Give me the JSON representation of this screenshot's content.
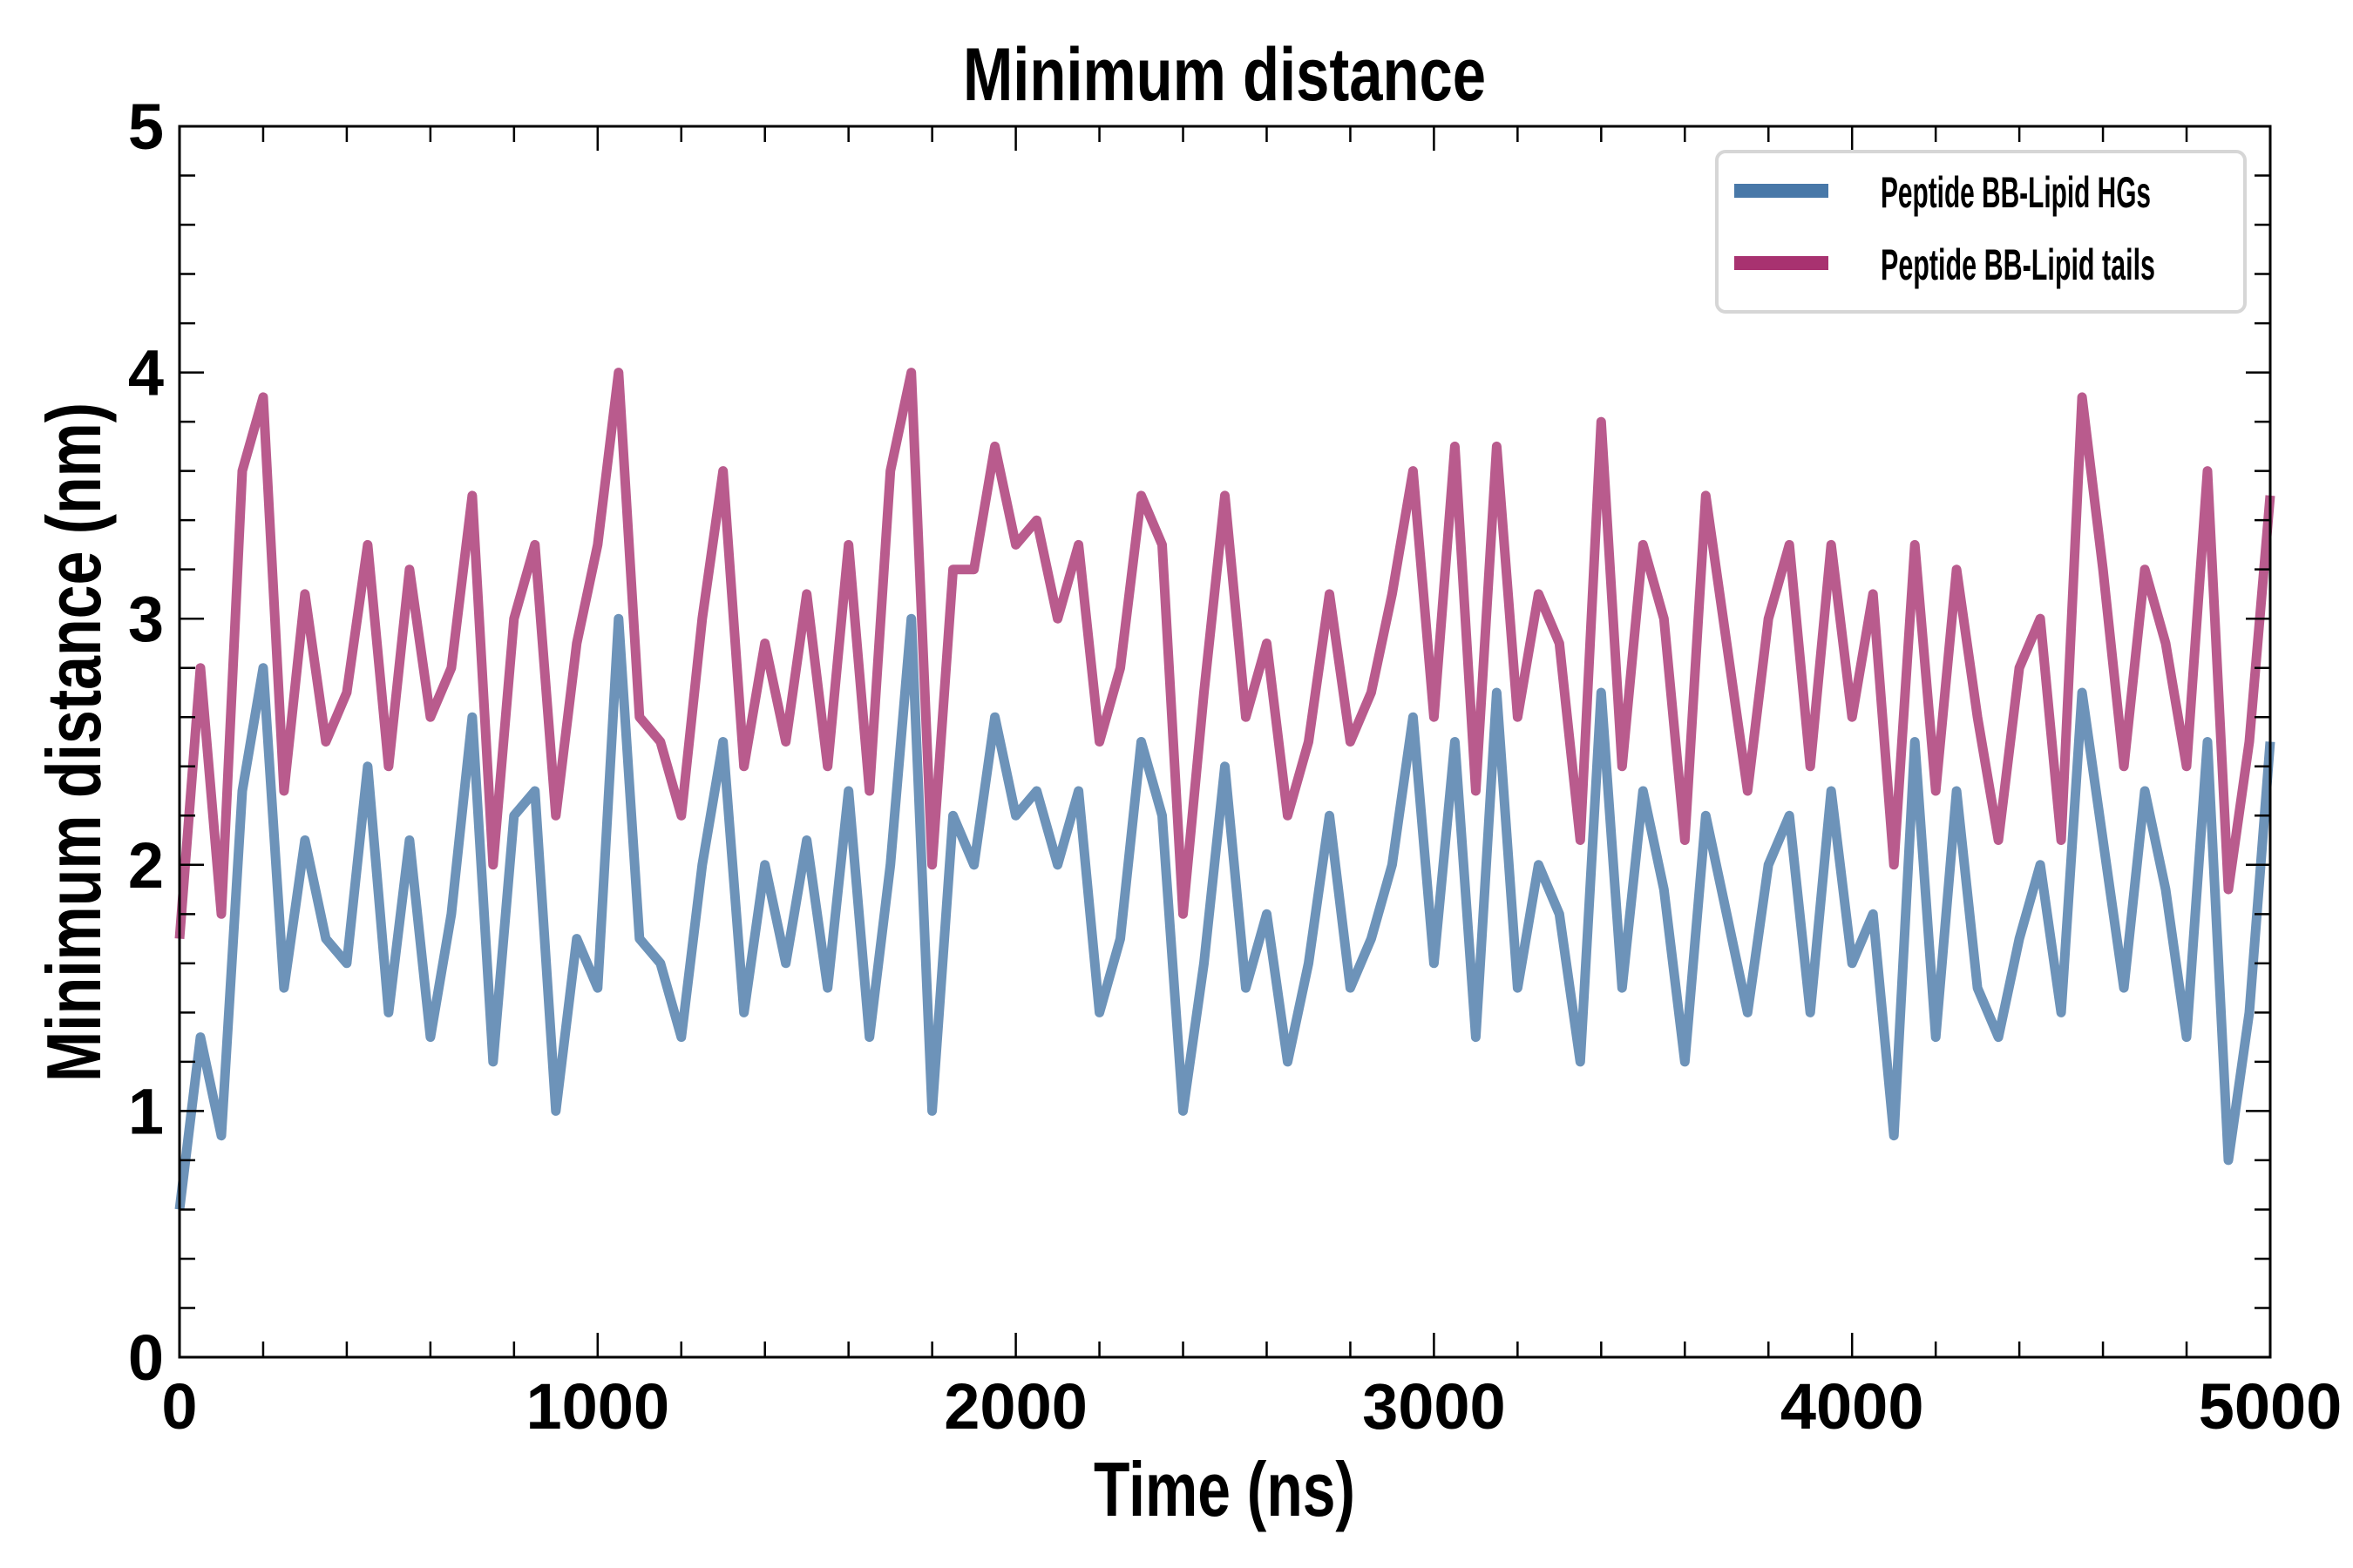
{
  "chart_data": {
    "type": "line",
    "title": "Minimum distance",
    "xlabel": "Time (ns)",
    "ylabel": "Minimum distance (nm)",
    "xlim": [
      0,
      5000
    ],
    "ylim": [
      0,
      5
    ],
    "xticks": [
      "0",
      "1000",
      "2000",
      "3000",
      "4000",
      "5000"
    ],
    "yticks": [
      "0",
      "1",
      "2",
      "3",
      "4",
      "5"
    ],
    "xtick_values": [
      0,
      1000,
      2000,
      3000,
      4000,
      5000
    ],
    "ytick_values": [
      0,
      1,
      2,
      3,
      4,
      5
    ],
    "grid": false,
    "legend_position": "top-right",
    "x": [
      0,
      50,
      100,
      150,
      200,
      250,
      300,
      350,
      400,
      450,
      500,
      550,
      600,
      650,
      700,
      750,
      800,
      850,
      900,
      950,
      1000,
      1050,
      1100,
      1150,
      1200,
      1250,
      1300,
      1350,
      1400,
      1450,
      1500,
      1550,
      1600,
      1650,
      1700,
      1750,
      1800,
      1850,
      1900,
      1950,
      2000,
      2050,
      2100,
      2150,
      2200,
      2250,
      2300,
      2350,
      2400,
      2450,
      2500,
      2550,
      2600,
      2650,
      2700,
      2750,
      2800,
      2850,
      2900,
      2950,
      3000,
      3050,
      3100,
      3150,
      3200,
      3250,
      3300,
      3350,
      3400,
      3450,
      3500,
      3550,
      3600,
      3650,
      3700,
      3750,
      3800,
      3850,
      3900,
      3950,
      4000,
      4050,
      4100,
      4150,
      4200,
      4250,
      4300,
      4350,
      4400,
      4450,
      4500,
      4550,
      4600,
      4650,
      4700,
      4750,
      4800,
      4850,
      4900,
      4950,
      5000
    ],
    "series": [
      {
        "name": "Peptide BB-Lipid HGs",
        "color": "#4878a8",
        "values": [
          0.6,
          1.3,
          0.9,
          2.3,
          2.8,
          1.5,
          2.1,
          1.7,
          1.6,
          2.4,
          1.4,
          2.1,
          1.3,
          1.8,
          2.6,
          1.2,
          2.2,
          2.3,
          1.0,
          1.7,
          1.5,
          3.0,
          1.7,
          1.6,
          1.3,
          2.0,
          2.5,
          1.4,
          2.0,
          1.6,
          2.1,
          1.5,
          2.3,
          1.3,
          2.0,
          3.0,
          1.0,
          2.2,
          2.0,
          2.6,
          2.2,
          2.3,
          2.0,
          2.3,
          1.4,
          1.7,
          2.5,
          2.2,
          1.0,
          1.6,
          2.4,
          1.5,
          1.8,
          1.2,
          1.6,
          2.2,
          1.5,
          1.7,
          2.0,
          2.6,
          1.6,
          2.5,
          1.3,
          2.7,
          1.5,
          2.0,
          1.8,
          1.2,
          2.7,
          1.5,
          2.3,
          1.9,
          1.2,
          2.2,
          1.8,
          1.4,
          2.0,
          2.2,
          1.4,
          2.3,
          1.6,
          1.8,
          0.9,
          2.5,
          1.3,
          2.3,
          1.5,
          1.3,
          1.7,
          2.0,
          1.4,
          2.7,
          2.1,
          1.5,
          2.3,
          1.9,
          1.3,
          2.5,
          0.8,
          1.4,
          2.5
        ]
      },
      {
        "name": "Peptide BB-Lipid tails",
        "color": "#a83270",
        "values": [
          1.7,
          2.8,
          1.8,
          3.6,
          3.9,
          2.3,
          3.1,
          2.5,
          2.7,
          3.3,
          2.4,
          3.2,
          2.6,
          2.8,
          3.5,
          2.0,
          3.0,
          3.3,
          2.2,
          2.9,
          3.3,
          4.0,
          2.6,
          2.5,
          2.2,
          3.0,
          3.6,
          2.4,
          2.9,
          2.5,
          3.1,
          2.4,
          3.3,
          2.3,
          3.6,
          4.0,
          2.0,
          3.2,
          3.2,
          3.7,
          3.3,
          3.4,
          3.0,
          3.3,
          2.5,
          2.8,
          3.5,
          3.3,
          1.8,
          2.7,
          3.5,
          2.6,
          2.9,
          2.2,
          2.5,
          3.1,
          2.5,
          2.7,
          3.1,
          3.6,
          2.6,
          3.7,
          2.3,
          3.7,
          2.6,
          3.1,
          2.9,
          2.1,
          3.8,
          2.4,
          3.3,
          3.0,
          2.1,
          3.5,
          2.9,
          2.3,
          3.0,
          3.3,
          2.4,
          3.3,
          2.6,
          3.1,
          2.0,
          3.3,
          2.3,
          3.2,
          2.6,
          2.1,
          2.8,
          3.0,
          2.1,
          3.9,
          3.2,
          2.4,
          3.2,
          2.9,
          2.4,
          3.6,
          1.9,
          2.5,
          3.5
        ]
      }
    ]
  }
}
